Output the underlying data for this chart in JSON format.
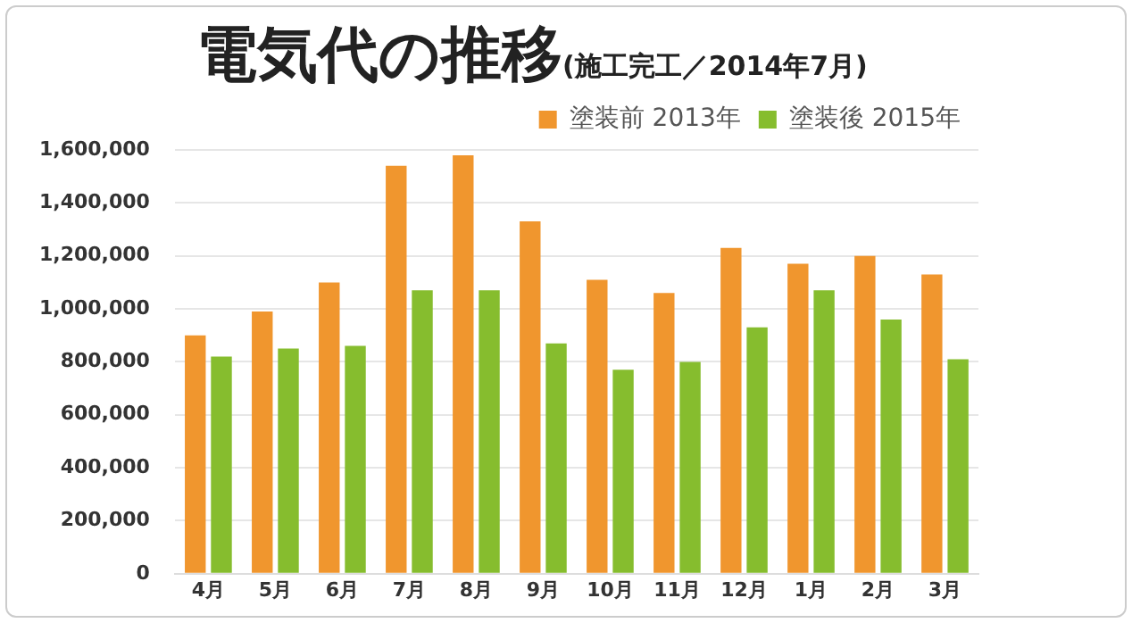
{
  "chart_data": {
    "type": "bar",
    "title": "電気代の推移",
    "subtitle": "(施工完工／2014年7月)",
    "categories": [
      "4月",
      "5月",
      "6月",
      "7月",
      "8月",
      "9月",
      "10月",
      "11月",
      "12月",
      "1月",
      "2月",
      "3月"
    ],
    "series": [
      {
        "name": "塗装前 2013年",
        "color": "#f0962e",
        "values": [
          900000,
          990000,
          1100000,
          1540000,
          1580000,
          1330000,
          1110000,
          1060000,
          1230000,
          1170000,
          1200000,
          1130000
        ]
      },
      {
        "name": "塗装後 2015年",
        "color": "#86bd2e",
        "values": [
          820000,
          850000,
          860000,
          1070000,
          1070000,
          870000,
          770000,
          800000,
          930000,
          1070000,
          960000,
          810000
        ]
      }
    ],
    "ylim": [
      0,
      1600000
    ],
    "yticks": [
      {
        "value": 0,
        "label": "0"
      },
      {
        "value": 200000,
        "label": "200,000"
      },
      {
        "value": 400000,
        "label": "400,000"
      },
      {
        "value": 600000,
        "label": "600,000"
      },
      {
        "value": 800000,
        "label": "800,000"
      },
      {
        "value": 1000000,
        "label": "1,000,000"
      },
      {
        "value": 1200000,
        "label": "1,200,000"
      },
      {
        "value": 1400000,
        "label": "1,400,000"
      },
      {
        "value": 1600000,
        "label": "1,600,000"
      }
    ],
    "grid": "y",
    "legend": "top right"
  }
}
